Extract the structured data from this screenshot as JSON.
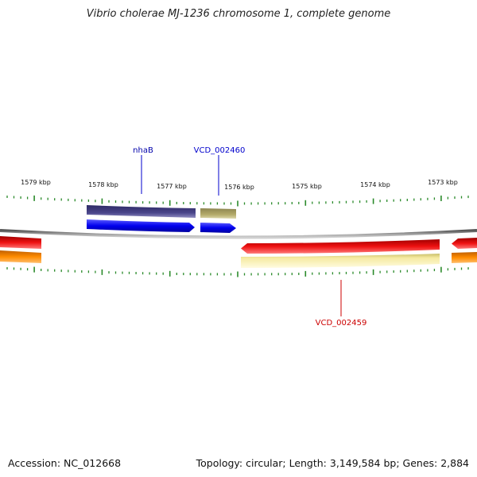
{
  "header": {
    "title": "Vibrio cholerae MJ-1236 chromosome 1, complete genome"
  },
  "footer": {
    "accession": "Accession: NC_012668",
    "summary": "Topology: circular; Length: 3,149,584 bp; Genes: 2,884"
  },
  "ruler": {
    "ticks": [
      {
        "label": "1579 kbp"
      },
      {
        "label": "1578 kbp"
      },
      {
        "label": "1577 kbp"
      },
      {
        "label": "1576 kbp"
      },
      {
        "label": "1575 kbp"
      },
      {
        "label": "1574 kbp"
      },
      {
        "label": "1573 kbp"
      }
    ]
  },
  "genes": [
    {
      "name": "nhaB",
      "color": "#0000aa"
    },
    {
      "name": "VCD_002460",
      "color": "#0000cc"
    },
    {
      "name": "VCD_002459",
      "color": "#cc0000"
    }
  ],
  "colors": {
    "backbone": "#888888",
    "ticks": "#2a8a2a",
    "forward_cds": "#0000ee",
    "forward_gene": "#4a458a",
    "forward_other": "#b3aa6a",
    "reverse_cds": "#ee1111",
    "reverse_gene": "#f5eaa0",
    "orange_feature": "#ff8c00"
  }
}
